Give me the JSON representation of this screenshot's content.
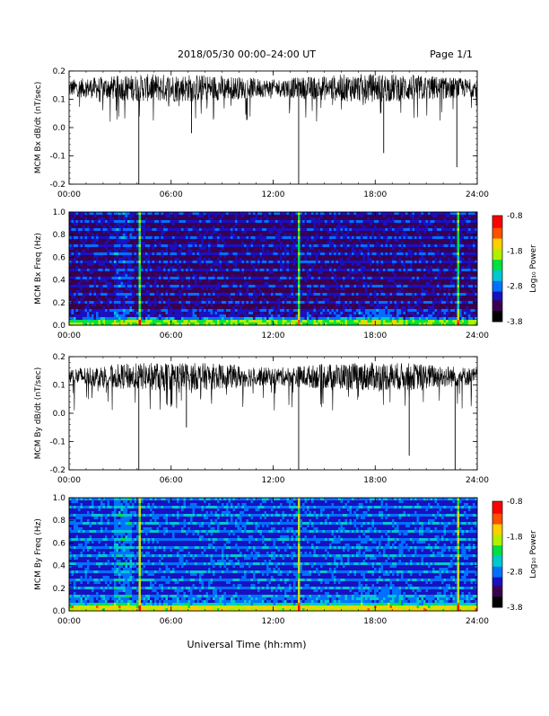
{
  "header": {
    "title": "2018/05/30  00:00–24:00 UT",
    "page": "Page 1/1"
  },
  "xlabel": "Universal Time (hh:mm)",
  "chart_data": [
    {
      "type": "line",
      "ylabel": "MCM Bx dB/dt (nT/sec)",
      "xlim": [
        0,
        24
      ],
      "ylim": [
        -0.2,
        0.2
      ],
      "x_ticks": [
        "00:00",
        "06:00",
        "12:00",
        "18:00",
        "24:00"
      ],
      "y_ticks": [
        "0.2",
        "0.1",
        "0.0",
        "-0.1",
        "-0.2"
      ],
      "baseline": 0.14,
      "spikes": [
        {
          "x": 4.1,
          "y": -0.2
        },
        {
          "x": 7.2,
          "y": -0.02
        },
        {
          "x": 13.5,
          "y": -0.2
        },
        {
          "x": 18.5,
          "y": -0.09
        },
        {
          "x": 22.8,
          "y": -0.14
        }
      ]
    },
    {
      "type": "heatmap",
      "ylabel": "MCM Bx Freq (Hz)",
      "xlim": [
        0,
        24
      ],
      "ylim": [
        0,
        1
      ],
      "x_ticks": [
        "00:00",
        "06:00",
        "12:00",
        "18:00",
        "24:00"
      ],
      "y_ticks": [
        "1.0",
        "0.8",
        "0.6",
        "0.4",
        "0.2",
        "0.0"
      ],
      "colorbar": {
        "label": "Log₁₀ Power",
        "ticks": [
          "-0.8",
          "-1.8",
          "-2.8",
          "-3.8"
        ],
        "range": [
          -3.8,
          -0.8
        ]
      }
    },
    {
      "type": "line",
      "ylabel": "MCM By dB/dt (nT/sec)",
      "xlim": [
        0,
        24
      ],
      "ylim": [
        -0.2,
        0.2
      ],
      "x_ticks": [
        "00:00",
        "06:00",
        "12:00",
        "18:00",
        "24:00"
      ],
      "y_ticks": [
        "0.2",
        "0.1",
        "0.0",
        "-0.1",
        "-0.2"
      ],
      "baseline": 0.13,
      "spikes": [
        {
          "x": 4.1,
          "y": -0.2
        },
        {
          "x": 6.9,
          "y": -0.05
        },
        {
          "x": 13.5,
          "y": -0.2
        },
        {
          "x": 20.0,
          "y": -0.15
        },
        {
          "x": 22.7,
          "y": -0.2
        }
      ]
    },
    {
      "type": "heatmap",
      "ylabel": "MCM By Freq (Hz)",
      "xlim": [
        0,
        24
      ],
      "ylim": [
        0,
        1
      ],
      "x_ticks": [
        "00:00",
        "06:00",
        "12:00",
        "18:00",
        "24:00"
      ],
      "y_ticks": [
        "1.0",
        "0.8",
        "0.6",
        "0.4",
        "0.2",
        "0.0"
      ],
      "colorbar": {
        "label": "Log₁₀ Power",
        "ticks": [
          "-0.8",
          "-1.8",
          "-2.8",
          "-3.8"
        ],
        "range": [
          -3.8,
          -0.8
        ]
      }
    }
  ],
  "colors": {
    "trace": "#000000",
    "colormap": [
      "#000000",
      "#3a0050",
      "#1a10c0",
      "#0070ff",
      "#00c8d0",
      "#00e040",
      "#b0f000",
      "#ffd000",
      "#ff5000",
      "#ff0000"
    ]
  }
}
